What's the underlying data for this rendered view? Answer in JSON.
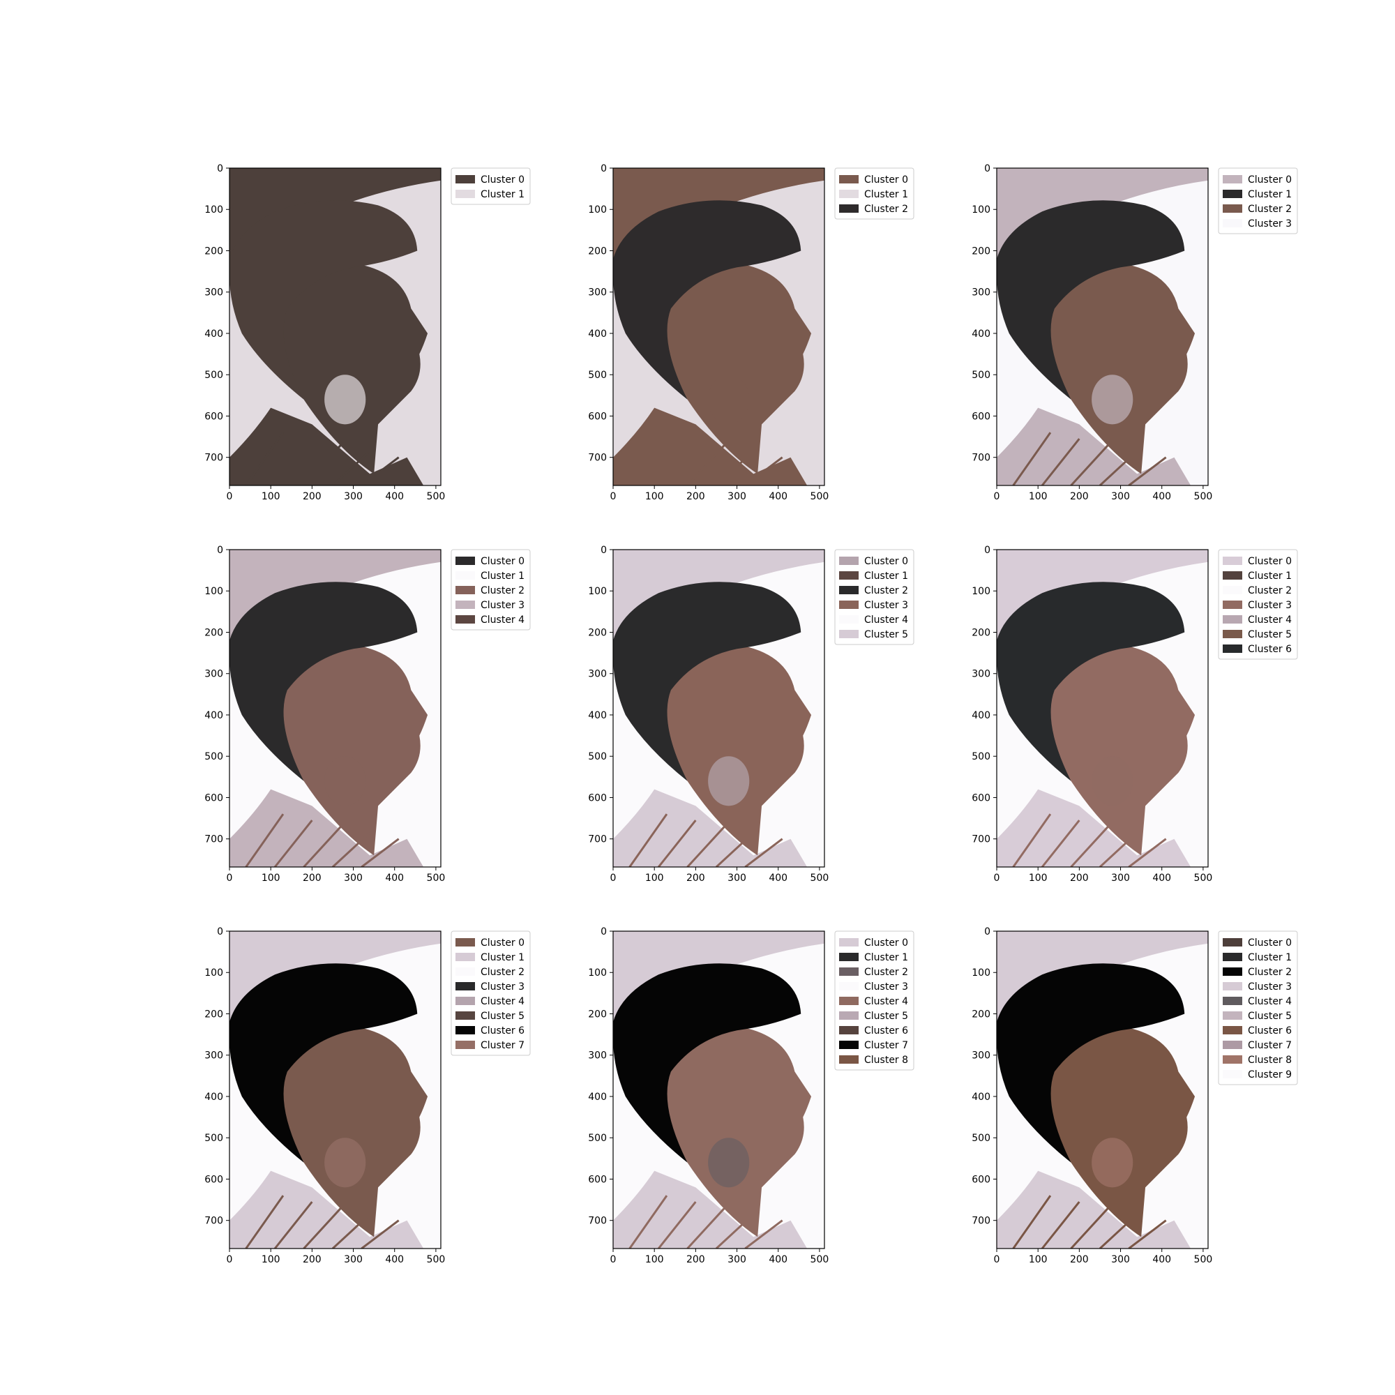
{
  "chart_data": [
    {
      "type": "image",
      "xlim": [
        0,
        512
      ],
      "ylim": [
        768,
        0
      ],
      "xticks": [
        "0",
        "100",
        "200",
        "300",
        "400",
        "500"
      ],
      "yticks": [
        "0",
        "100",
        "200",
        "300",
        "400",
        "500",
        "600",
        "700"
      ],
      "legend": [
        {
          "label": "Cluster 0",
          "color": "#4d403b"
        },
        {
          "label": "Cluster 1",
          "color": "#e2dbe0"
        }
      ]
    },
    {
      "type": "image",
      "xlim": [
        0,
        512
      ],
      "ylim": [
        768,
        0
      ],
      "xticks": [
        "0",
        "100",
        "200",
        "300",
        "400",
        "500"
      ],
      "yticks": [
        "0",
        "100",
        "200",
        "300",
        "400",
        "500",
        "600",
        "700"
      ],
      "legend": [
        {
          "label": "Cluster 0",
          "color": "#7a5a4e"
        },
        {
          "label": "Cluster 1",
          "color": "#e2dbe0"
        },
        {
          "label": "Cluster 2",
          "color": "#2e2b2c"
        }
      ]
    },
    {
      "type": "image",
      "xlim": [
        0,
        512
      ],
      "ylim": [
        768,
        0
      ],
      "xticks": [
        "0",
        "100",
        "200",
        "300",
        "400",
        "500"
      ],
      "yticks": [
        "0",
        "100",
        "200",
        "300",
        "400",
        "500",
        "600",
        "700"
      ],
      "legend": [
        {
          "label": "Cluster 0",
          "color": "#c2b3bc"
        },
        {
          "label": "Cluster 1",
          "color": "#2b2a2b"
        },
        {
          "label": "Cluster 2",
          "color": "#7a5a4e"
        },
        {
          "label": "Cluster 3",
          "color": "#f9f8fb"
        }
      ]
    },
    {
      "type": "image",
      "xlim": [
        0,
        512
      ],
      "ylim": [
        768,
        0
      ],
      "xticks": [
        "0",
        "100",
        "200",
        "300",
        "400",
        "500"
      ],
      "yticks": [
        "0",
        "100",
        "200",
        "300",
        "400",
        "500",
        "600",
        "700"
      ],
      "legend": [
        {
          "label": "Cluster 0",
          "color": "#2b2a2b"
        },
        {
          "label": "Cluster 1",
          "color": "#fbfafc"
        },
        {
          "label": "Cluster 2",
          "color": "#85625a"
        },
        {
          "label": "Cluster 3",
          "color": "#c3b3bc"
        },
        {
          "label": "Cluster 4",
          "color": "#5c4641"
        }
      ]
    },
    {
      "type": "image",
      "xlim": [
        0,
        512
      ],
      "ylim": [
        768,
        0
      ],
      "xticks": [
        "0",
        "100",
        "200",
        "300",
        "400",
        "500"
      ],
      "yticks": [
        "0",
        "100",
        "200",
        "300",
        "400",
        "500",
        "600",
        "700"
      ],
      "legend": [
        {
          "label": "Cluster 0",
          "color": "#b4a4ad"
        },
        {
          "label": "Cluster 1",
          "color": "#5c4641"
        },
        {
          "label": "Cluster 2",
          "color": "#2a2a2b"
        },
        {
          "label": "Cluster 3",
          "color": "#8a6459"
        },
        {
          "label": "Cluster 4",
          "color": "#fbfafc"
        },
        {
          "label": "Cluster 5",
          "color": "#d6cbd5"
        }
      ]
    },
    {
      "type": "image",
      "xlim": [
        0,
        512
      ],
      "ylim": [
        768,
        0
      ],
      "xticks": [
        "0",
        "100",
        "200",
        "300",
        "400",
        "500"
      ],
      "yticks": [
        "0",
        "100",
        "200",
        "300",
        "400",
        "500",
        "600",
        "700"
      ],
      "legend": [
        {
          "label": "Cluster 0",
          "color": "#d8ccd7"
        },
        {
          "label": "Cluster 1",
          "color": "#53423e"
        },
        {
          "label": "Cluster 2",
          "color": "#fbfafc"
        },
        {
          "label": "Cluster 3",
          "color": "#926b62"
        },
        {
          "label": "Cluster 4",
          "color": "#b8a7b1"
        },
        {
          "label": "Cluster 5",
          "color": "#7a5a4b"
        },
        {
          "label": "Cluster 6",
          "color": "#282a2c"
        }
      ]
    },
    {
      "type": "image",
      "xlim": [
        0,
        512
      ],
      "ylim": [
        768,
        0
      ],
      "xticks": [
        "0",
        "100",
        "200",
        "300",
        "400",
        "500"
      ],
      "yticks": [
        "0",
        "100",
        "200",
        "300",
        "400",
        "500",
        "600",
        "700"
      ],
      "legend": [
        {
          "label": "Cluster 0",
          "color": "#7a5a4e"
        },
        {
          "label": "Cluster 1",
          "color": "#d6cbd5"
        },
        {
          "label": "Cluster 2",
          "color": "#fbfafc"
        },
        {
          "label": "Cluster 3",
          "color": "#2a2a2b"
        },
        {
          "label": "Cluster 4",
          "color": "#b4a4ad"
        },
        {
          "label": "Cluster 5",
          "color": "#574540"
        },
        {
          "label": "Cluster 6",
          "color": "#050505"
        },
        {
          "label": "Cluster 7",
          "color": "#956f66"
        }
      ]
    },
    {
      "type": "image",
      "xlim": [
        0,
        512
      ],
      "ylim": [
        768,
        0
      ],
      "xticks": [
        "0",
        "100",
        "200",
        "300",
        "400",
        "500"
      ],
      "yticks": [
        "0",
        "100",
        "200",
        "300",
        "400",
        "500",
        "600",
        "700"
      ],
      "legend": [
        {
          "label": "Cluster 0",
          "color": "#d6cbd5"
        },
        {
          "label": "Cluster 1",
          "color": "#2a2a2b"
        },
        {
          "label": "Cluster 2",
          "color": "#6a5f63"
        },
        {
          "label": "Cluster 3",
          "color": "#fbfafc"
        },
        {
          "label": "Cluster 4",
          "color": "#8f6a60"
        },
        {
          "label": "Cluster 5",
          "color": "#b9a9b3"
        },
        {
          "label": "Cluster 6",
          "color": "#56433e"
        },
        {
          "label": "Cluster 7",
          "color": "#050505"
        },
        {
          "label": "Cluster 8",
          "color": "#7a5645"
        }
      ]
    },
    {
      "type": "image",
      "xlim": [
        0,
        512
      ],
      "ylim": [
        768,
        0
      ],
      "xticks": [
        "0",
        "100",
        "200",
        "300",
        "400",
        "500"
      ],
      "yticks": [
        "0",
        "100",
        "200",
        "300",
        "400",
        "500",
        "600",
        "700"
      ],
      "legend": [
        {
          "label": "Cluster 0",
          "color": "#4d3e3a"
        },
        {
          "label": "Cluster 1",
          "color": "#2a2a2b"
        },
        {
          "label": "Cluster 2",
          "color": "#050505"
        },
        {
          "label": "Cluster 3",
          "color": "#d6cbd5"
        },
        {
          "label": "Cluster 4",
          "color": "#5f5b5e"
        },
        {
          "label": "Cluster 5",
          "color": "#c3b4bd"
        },
        {
          "label": "Cluster 6",
          "color": "#7a5645"
        },
        {
          "label": "Cluster 7",
          "color": "#ad9aa4"
        },
        {
          "label": "Cluster 8",
          "color": "#a07468"
        },
        {
          "label": "Cluster 9",
          "color": "#fbfafc"
        }
      ]
    }
  ]
}
